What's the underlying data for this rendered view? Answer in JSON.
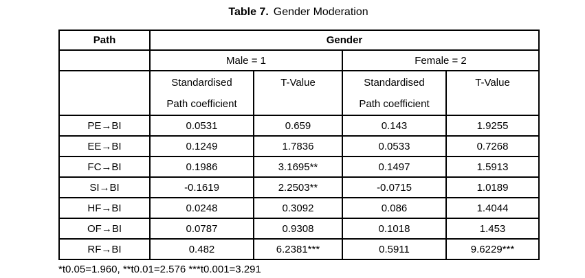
{
  "title": {
    "label": "Table 7.",
    "text": "Gender Moderation"
  },
  "table": {
    "header": {
      "path": "Path",
      "gender": "Gender",
      "male": "Male = 1",
      "female": "Female = 2",
      "coefficient": "Standardised Path coefficient",
      "tvalue": "T-Value"
    },
    "rows": [
      {
        "path": "PE→BI",
        "male_coef": "0.0531",
        "male_t": "0.659",
        "female_coef": "0.143",
        "female_t": "1.9255"
      },
      {
        "path": "EE→BI",
        "male_coef": "0.1249",
        "male_t": "1.7836",
        "female_coef": "0.0533",
        "female_t": "0.7268"
      },
      {
        "path": "FC→BI",
        "male_coef": "0.1986",
        "male_t": "3.1695**",
        "female_coef": "0.1497",
        "female_t": "1.5913"
      },
      {
        "path": "SI→BI",
        "male_coef": "-0.1619",
        "male_t": "2.2503**",
        "female_coef": "-0.0715",
        "female_t": "1.0189"
      },
      {
        "path": "HF→BI",
        "male_coef": "0.0248",
        "male_t": "0.3092",
        "female_coef": "0.086",
        "female_t": "1.4044"
      },
      {
        "path": "OF→BI",
        "male_coef": "0.0787",
        "male_t": "0.9308",
        "female_coef": "0.1018",
        "female_t": "1.453"
      },
      {
        "path": "RF→BI",
        "male_coef": "0.482",
        "male_t": "6.2381***",
        "female_coef": "0.5911",
        "female_t": "9.6229***"
      }
    ]
  },
  "footnote": "*t0.05=1.960, **t0.01=2.576 ***t0.001=3.291",
  "colors": {
    "text": "#000000",
    "border": "#000000",
    "background": "#ffffff"
  }
}
